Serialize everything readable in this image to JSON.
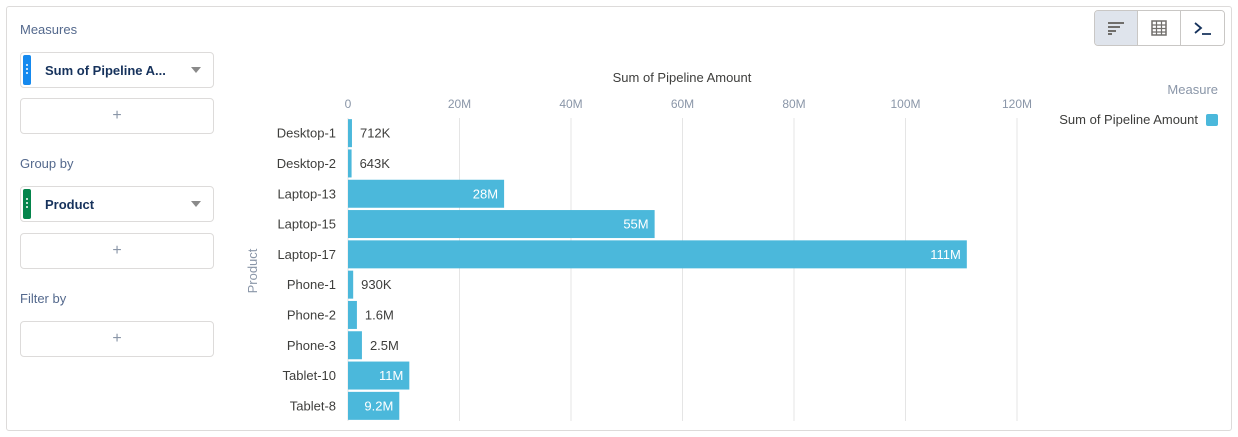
{
  "panel": {
    "measures_label": "Measures",
    "measure_pill": "Sum of Pipeline A...",
    "group_by_label": "Group by",
    "group_pill": "Product",
    "filter_by_label": "Filter by",
    "add_symbol": "+"
  },
  "toolbar": {
    "buttons": [
      "bar-chart-icon",
      "table-icon",
      "console-icon"
    ],
    "active": "bar-chart-icon"
  },
  "legend": {
    "title": "Measure",
    "item": "Sum of Pipeline Amount"
  },
  "colors": {
    "bar": "#4bb8db",
    "measure_handle": "#1589ee",
    "group_handle": "#04844b"
  },
  "chart_data": {
    "type": "bar",
    "orientation": "horizontal",
    "title": "Sum of Pipeline Amount",
    "ylabel": "Product",
    "xlim": [
      0,
      120000000
    ],
    "x_ticks": [
      0,
      20000000,
      40000000,
      60000000,
      80000000,
      100000000,
      120000000
    ],
    "x_tick_labels": [
      "0",
      "20M",
      "40M",
      "60M",
      "80M",
      "100M",
      "120M"
    ],
    "grid": true,
    "legend_position": "top-right",
    "categories": [
      "Desktop-1",
      "Desktop-2",
      "Laptop-13",
      "Laptop-15",
      "Laptop-17",
      "Phone-1",
      "Phone-2",
      "Phone-3",
      "Tablet-10",
      "Tablet-8"
    ],
    "values": [
      712000,
      643000,
      28000000,
      55000000,
      111000000,
      930000,
      1600000,
      2500000,
      11000000,
      9200000
    ],
    "data_labels": [
      "712K",
      "643K",
      "28M",
      "55M",
      "111M",
      "930K",
      "1.6M",
      "2.5M",
      "11M",
      "9.2M"
    ]
  }
}
